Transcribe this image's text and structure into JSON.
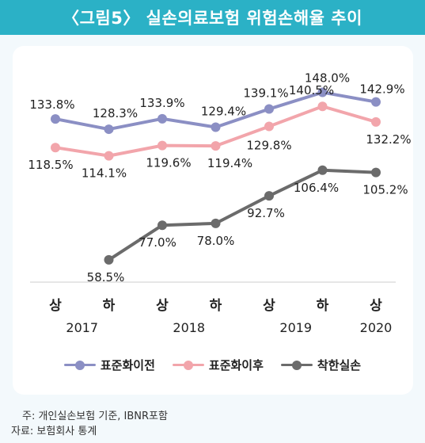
{
  "title": "〈그림5〉 실손의료보험 위험손해율 추이",
  "chart_data": {
    "type": "line",
    "categories": [
      "상",
      "하",
      "상",
      "하",
      "상",
      "하",
      "상"
    ],
    "years": [
      "2017",
      "2018",
      "2019",
      "2020"
    ],
    "ylim": [
      50,
      155
    ],
    "grid": false,
    "legend_position": "bottom",
    "series": [
      {
        "name": "표준화이전",
        "color": "#8b8fc4",
        "values": [
          133.8,
          128.3,
          133.9,
          129.4,
          139.1,
          148.0,
          142.9
        ],
        "labels": [
          "133.8%",
          "128.3%",
          "133.9%",
          "129.4%",
          "139.1%",
          "148.0%",
          "142.9%"
        ]
      },
      {
        "name": "표준화이후",
        "color": "#f2a5ab",
        "values": [
          118.5,
          114.1,
          119.6,
          119.4,
          129.8,
          140.5,
          132.2
        ],
        "labels": [
          "118.5%",
          "114.1%",
          "119.6%",
          "119.4%",
          "129.8%",
          "140.5%",
          "132.2%"
        ]
      },
      {
        "name": "착한실손",
        "color": "#6b6b6b",
        "values": [
          null,
          58.5,
          77.0,
          78.0,
          92.7,
          106.4,
          105.2
        ],
        "labels": [
          null,
          "58.5%",
          "77.0%",
          "78.0%",
          "92.7%",
          "106.4%",
          "105.2%"
        ]
      }
    ]
  },
  "notes": {
    "line1": "주: 개인실손보험 기준, IBNR포함",
    "line2": "자료: 보험회사 통계"
  }
}
